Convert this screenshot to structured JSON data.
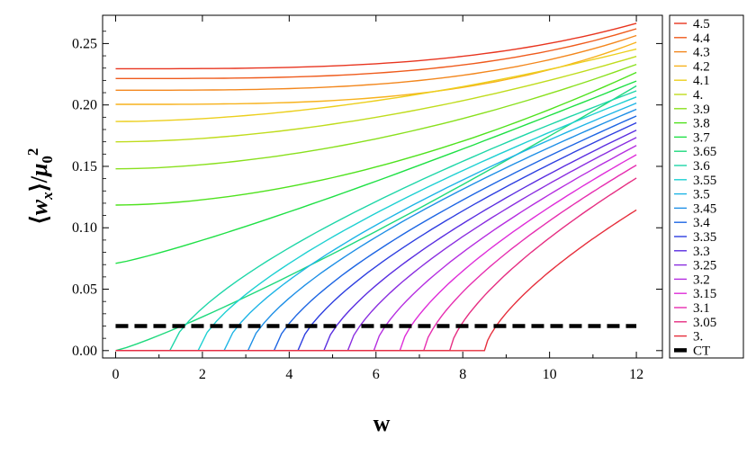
{
  "chart_data": {
    "type": "line",
    "xlabel": "w",
    "ylabel_parts": {
      "open": "⟨",
      "w": "w",
      "sub": "x",
      "close": "⟩",
      "slash": "/",
      "mu": "μ",
      "mu_sub": "0",
      "sup": "2"
    },
    "xlim": [
      -0.3,
      12.6
    ],
    "ylim": [
      -0.006,
      0.273
    ],
    "x_ticks": [
      0,
      2,
      4,
      6,
      8,
      10,
      12
    ],
    "x_tick_labels": [
      "0",
      "2",
      "4",
      "6",
      "8",
      "10",
      "12"
    ],
    "y_ticks": [
      0.0,
      0.05,
      0.1,
      0.15,
      0.2,
      0.25
    ],
    "y_tick_labels": [
      "0.00",
      "0.05",
      "0.10",
      "0.15",
      "0.20",
      "0.25"
    ],
    "grid": false,
    "legend_position": "right-outside",
    "x_end": 12,
    "series": [
      {
        "name": "4.5",
        "color": "#e8351f",
        "start": 0.2295,
        "end": 0.2665,
        "onset": 0
      },
      {
        "name": "4.4",
        "color": "#ef5b1c",
        "start": 0.2215,
        "end": 0.262,
        "onset": 0
      },
      {
        "name": "4.3",
        "color": "#f3871d",
        "start": 0.212,
        "end": 0.2565,
        "onset": 0
      },
      {
        "name": "4.2",
        "color": "#f7b21d",
        "start": 0.2005,
        "end": 0.251,
        "onset": 0
      },
      {
        "name": "4.1",
        "color": "#eccf1d",
        "start": 0.1865,
        "end": 0.2455,
        "onset": 0
      },
      {
        "name": "4.",
        "color": "#c0dc1d",
        "start": 0.17,
        "end": 0.2395,
        "onset": 0
      },
      {
        "name": "3.9",
        "color": "#89e01d",
        "start": 0.148,
        "end": 0.233,
        "onset": 0
      },
      {
        "name": "3.8",
        "color": "#4fe21e",
        "start": 0.1185,
        "end": 0.2265,
        "onset": 0
      },
      {
        "name": "3.7",
        "color": "#1ee045",
        "start": 0.071,
        "end": 0.2195,
        "onset": 0
      },
      {
        "name": "3.65",
        "color": "#1ed97d",
        "start": 0.0,
        "end": 0.2155,
        "onset": 0
      },
      {
        "name": "3.6",
        "color": "#1ed6a8",
        "start": 0.0,
        "end": 0.2115,
        "onset": 1.25
      },
      {
        "name": "3.55",
        "color": "#1ed0d2",
        "start": 0.0,
        "end": 0.2065,
        "onset": 1.9
      },
      {
        "name": "3.5",
        "color": "#1eb5e6",
        "start": 0.0,
        "end": 0.2015,
        "onset": 2.5
      },
      {
        "name": "3.45",
        "color": "#1e8fe6",
        "start": 0.0,
        "end": 0.1965,
        "onset": 3.05
      },
      {
        "name": "3.4",
        "color": "#1e66e3",
        "start": 0.0,
        "end": 0.191,
        "onset": 3.65
      },
      {
        "name": "3.35",
        "color": "#2e3fe0",
        "start": 0.0,
        "end": 0.1855,
        "onset": 4.2
      },
      {
        "name": "3.3",
        "color": "#5a2ee0",
        "start": 0.0,
        "end": 0.1795,
        "onset": 4.8
      },
      {
        "name": "3.25",
        "color": "#8a2ee0",
        "start": 0.0,
        "end": 0.1735,
        "onset": 5.35
      },
      {
        "name": "3.2",
        "color": "#b52ee0",
        "start": 0.0,
        "end": 0.167,
        "onset": 5.95
      },
      {
        "name": "3.15",
        "color": "#df2ed9",
        "start": 0.0,
        "end": 0.1595,
        "onset": 6.55
      },
      {
        "name": "3.1",
        "color": "#e62eb0",
        "start": 0.0,
        "end": 0.151,
        "onset": 7.1
      },
      {
        "name": "3.05",
        "color": "#e62e82",
        "start": 0.0,
        "end": 0.1405,
        "onset": 7.7
      },
      {
        "name": "3.",
        "color": "#e62e3c",
        "start": 0.0,
        "end": 0.1145,
        "onset": 8.5
      }
    ],
    "reference_line": {
      "name": "CT",
      "y": 0.02,
      "x_range": [
        0,
        12
      ],
      "color": "#000000",
      "style": "dashed"
    }
  }
}
